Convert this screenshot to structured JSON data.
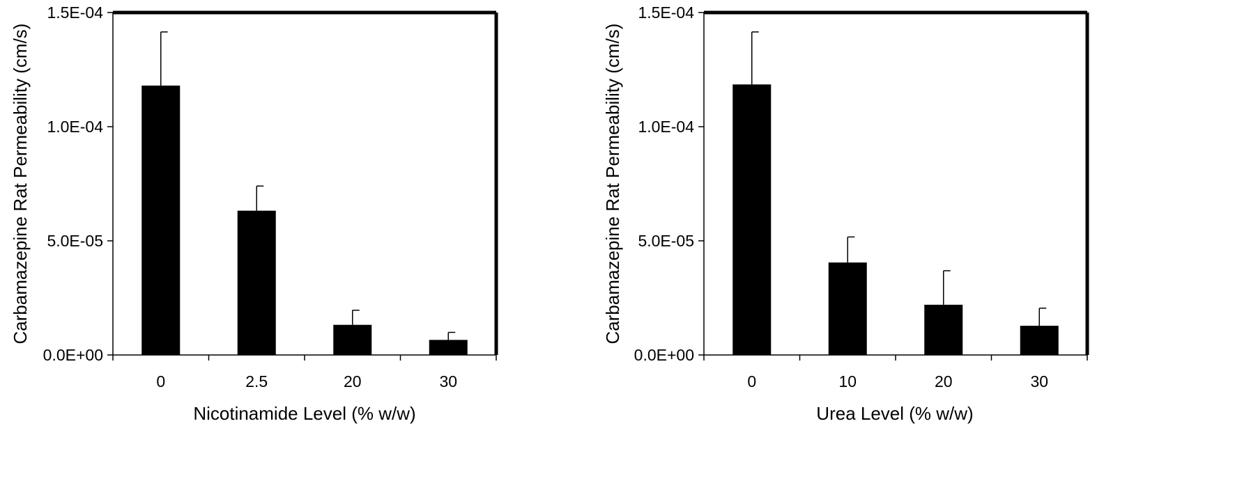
{
  "chart_data": [
    {
      "type": "bar",
      "categories": [
        "0",
        "2.5",
        "20",
        "30"
      ],
      "values": [
        0.000118,
        6.32e-05,
        1.32e-05,
        6.6e-06
      ],
      "error_bars": [
        2.35e-05,
        1.08e-05,
        6.4e-06,
        3.3e-06
      ],
      "xlabel": "Nicotinamide Level (% w/w)",
      "ylabel": "Carbamazepine Rat Permeability (cm/s)",
      "ylim": [
        0,
        0.00015
      ],
      "yticks": [
        0,
        5e-05,
        0.0001,
        0.00015
      ],
      "ytick_labels": [
        "0.0E+00",
        "5.0E-05",
        "1.0E-04",
        "1.5E-04"
      ],
      "bar_color": "#000000",
      "grid": false,
      "legend": "none"
    },
    {
      "type": "bar",
      "categories": [
        "0",
        "10",
        "20",
        "30"
      ],
      "values": [
        0.0001185,
        4.05e-05,
        2.2e-05,
        1.28e-05
      ],
      "error_bars": [
        2.3e-05,
        1.12e-05,
        1.49e-05,
        7.7e-06
      ],
      "xlabel": "Urea Level (% w/w)",
      "ylabel": "Carbamazepine Rat Permeability (cm/s)",
      "ylim": [
        0,
        0.00015
      ],
      "yticks": [
        0,
        5e-05,
        0.0001,
        0.00015
      ],
      "ytick_labels": [
        "0.0E+00",
        "5.0E-05",
        "1.0E-04",
        "1.5E-04"
      ],
      "bar_color": "#000000",
      "grid": false,
      "legend": "none"
    }
  ]
}
